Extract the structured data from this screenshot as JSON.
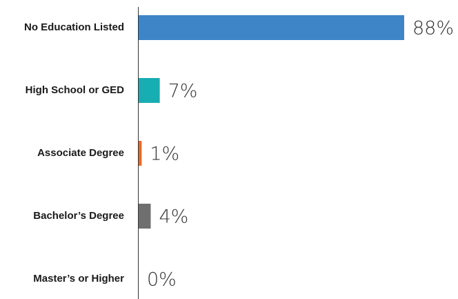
{
  "chart_data": {
    "type": "bar",
    "orientation": "horizontal",
    "categories": [
      "No Education Listed",
      "High School or GED",
      "Associate Degree",
      "Bachelor’s Degree",
      "Master’s or Higher"
    ],
    "values": [
      88,
      7,
      1,
      4,
      0
    ],
    "value_labels": [
      "88%",
      "7%",
      "1%",
      "4%",
      "0%"
    ],
    "colors": [
      "#3d85c6",
      "#16adb3",
      "#e8692c",
      "#6f6f6f",
      "#6f6f6f"
    ]
  }
}
